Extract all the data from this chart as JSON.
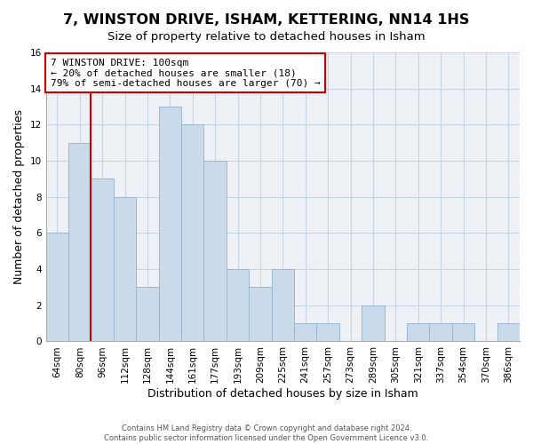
{
  "title": "7, WINSTON DRIVE, ISHAM, KETTERING, NN14 1HS",
  "subtitle": "Size of property relative to detached houses in Isham",
  "xlabel": "Distribution of detached houses by size in Isham",
  "ylabel": "Number of detached properties",
  "bar_labels": [
    "64sqm",
    "80sqm",
    "96sqm",
    "112sqm",
    "128sqm",
    "144sqm",
    "161sqm",
    "177sqm",
    "193sqm",
    "209sqm",
    "225sqm",
    "241sqm",
    "257sqm",
    "273sqm",
    "289sqm",
    "305sqm",
    "321sqm",
    "337sqm",
    "354sqm",
    "370sqm",
    "386sqm"
  ],
  "bar_values": [
    6,
    11,
    9,
    8,
    3,
    13,
    12,
    10,
    4,
    3,
    4,
    1,
    1,
    0,
    2,
    0,
    1,
    1,
    1,
    0,
    1
  ],
  "bar_color": "#c9daea",
  "bar_edgecolor": "#9ab8d0",
  "highlight_line_index": 2,
  "highlight_line_color": "#cc0000",
  "annotation_line1": "7 WINSTON DRIVE: 100sqm",
  "annotation_line2": "← 20% of detached houses are smaller (18)",
  "annotation_line3": "79% of semi-detached houses are larger (70) →",
  "annotation_box_edgecolor": "#cc0000",
  "ylim": [
    0,
    16
  ],
  "yticks": [
    0,
    2,
    4,
    6,
    8,
    10,
    12,
    14,
    16
  ],
  "footer_line1": "Contains HM Land Registry data © Crown copyright and database right 2024.",
  "footer_line2": "Contains public sector information licensed under the Open Government Licence v3.0.",
  "title_fontsize": 11.5,
  "subtitle_fontsize": 9.5,
  "xlabel_fontsize": 9,
  "ylabel_fontsize": 9,
  "tick_fontsize": 7.5,
  "grid_color": "#c8d4e0",
  "background_color": "#ffffff",
  "plot_bg_color": "#eef2f7"
}
